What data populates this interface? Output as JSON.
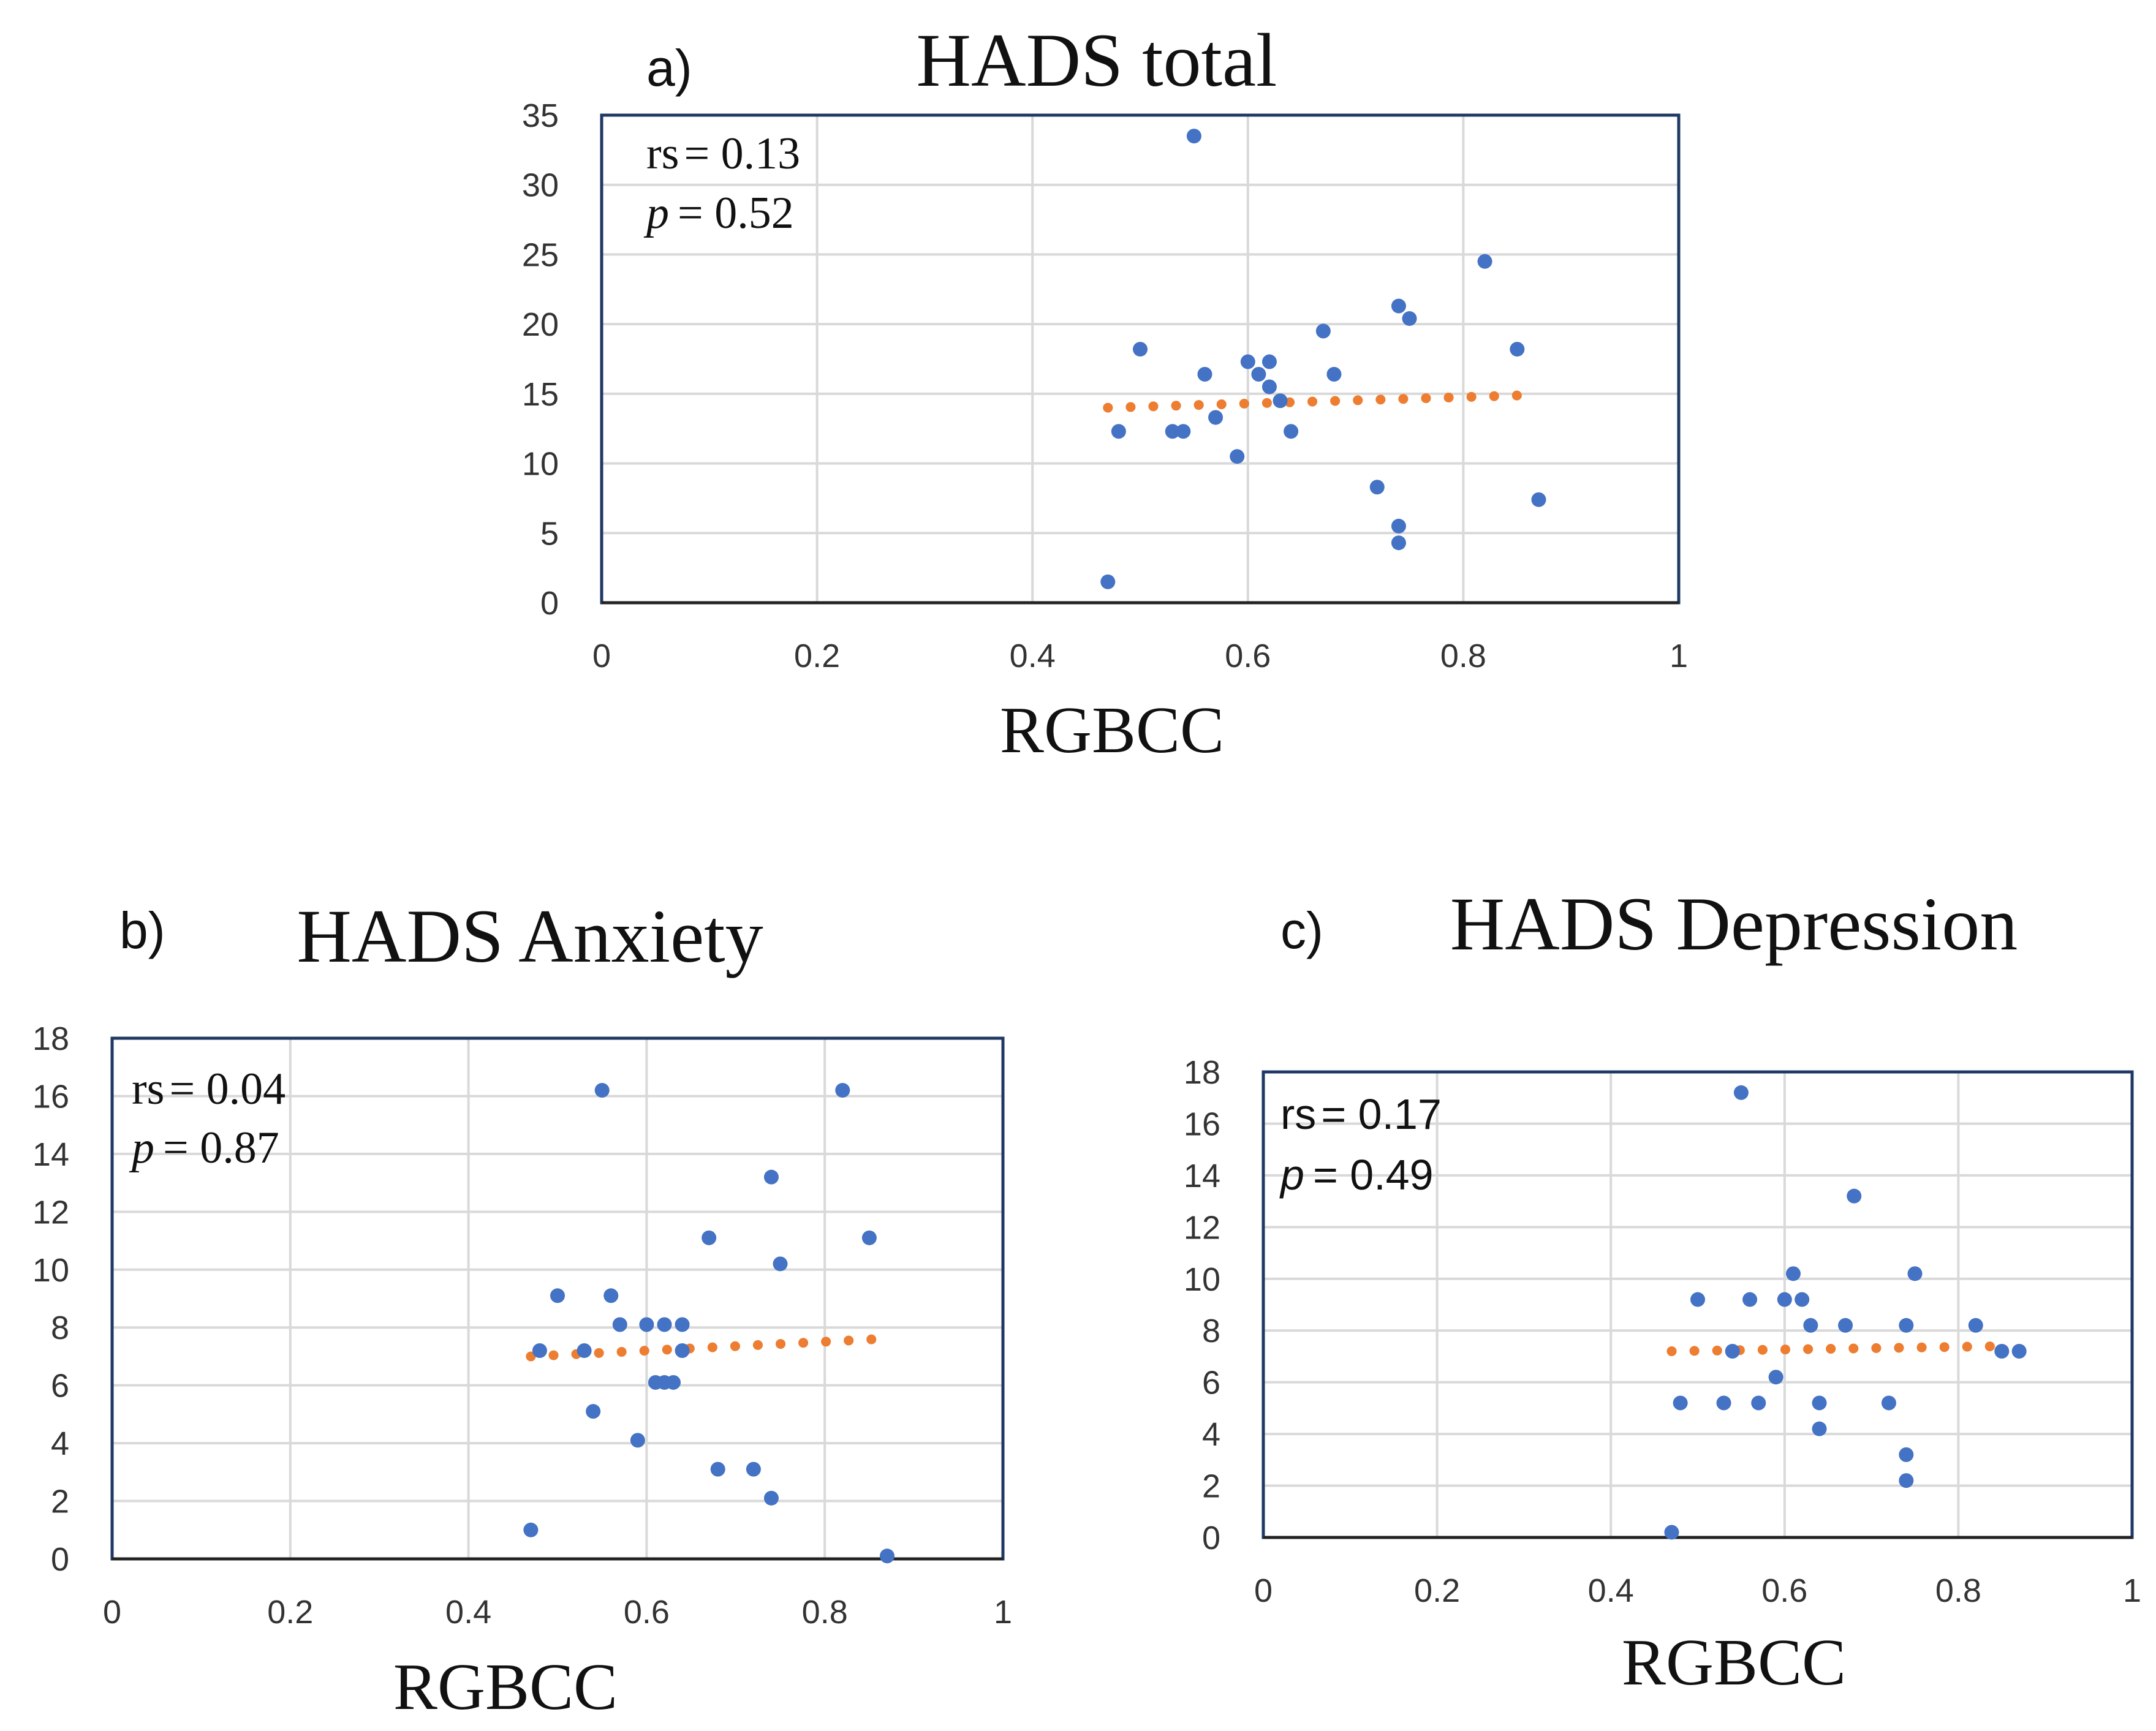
{
  "colors": {
    "points": "#4472C4",
    "trendline": "#ED7D31",
    "gridline": "#D9D9D9",
    "frame": "#1F3864"
  },
  "chart_data": [
    {
      "type": "scatter",
      "panel": "a)",
      "title": "HADS total",
      "xlabel": "RGBCC",
      "ylabel": "",
      "xlim": [
        0,
        1
      ],
      "ylim": [
        0,
        35
      ],
      "xticks": [
        "0",
        "0.2",
        "0.4",
        "0.6",
        "0.8",
        "1"
      ],
      "yticks": [
        "0",
        "5",
        "10",
        "15",
        "20",
        "25",
        "30",
        "35"
      ],
      "grid": true,
      "stats": {
        "rs_label": "rs",
        "rs_value": "= 0.13",
        "p_label": "p",
        "p_value": "= 0.52"
      },
      "points": [
        {
          "x": 0.47,
          "y": 1.5
        },
        {
          "x": 0.48,
          "y": 12.3
        },
        {
          "x": 0.5,
          "y": 18.2
        },
        {
          "x": 0.53,
          "y": 12.3
        },
        {
          "x": 0.54,
          "y": 12.3
        },
        {
          "x": 0.55,
          "y": 33.5
        },
        {
          "x": 0.56,
          "y": 16.4
        },
        {
          "x": 0.57,
          "y": 13.3
        },
        {
          "x": 0.59,
          "y": 10.5
        },
        {
          "x": 0.6,
          "y": 17.3
        },
        {
          "x": 0.61,
          "y": 16.4
        },
        {
          "x": 0.62,
          "y": 17.3
        },
        {
          "x": 0.62,
          "y": 15.5
        },
        {
          "x": 0.63,
          "y": 14.5
        },
        {
          "x": 0.64,
          "y": 12.3
        },
        {
          "x": 0.67,
          "y": 19.5
        },
        {
          "x": 0.68,
          "y": 16.4
        },
        {
          "x": 0.72,
          "y": 8.3
        },
        {
          "x": 0.74,
          "y": 21.3
        },
        {
          "x": 0.74,
          "y": 5.5
        },
        {
          "x": 0.74,
          "y": 4.3
        },
        {
          "x": 0.75,
          "y": 20.4
        },
        {
          "x": 0.82,
          "y": 24.5
        },
        {
          "x": 0.85,
          "y": 18.2
        },
        {
          "x": 0.87,
          "y": 7.4
        }
      ],
      "trendline": {
        "x": [
          0.47,
          0.86
        ],
        "y": [
          14.0,
          14.9
        ]
      }
    },
    {
      "type": "scatter",
      "panel": "b)",
      "title": "HADS Anxiety",
      "xlabel": "RGBCC",
      "ylabel": "",
      "xlim": [
        0,
        1
      ],
      "ylim": [
        0,
        18
      ],
      "xticks": [
        "0",
        "0.2",
        "0.4",
        "0.6",
        "0.8",
        "1"
      ],
      "yticks": [
        "0",
        "2",
        "4",
        "6",
        "8",
        "10",
        "12",
        "14",
        "16",
        "18"
      ],
      "grid": true,
      "stats": {
        "rs_label": "rs",
        "rs_value": "= 0.04",
        "p_label": "p",
        "p_value": "= 0.87"
      },
      "points": [
        {
          "x": 0.47,
          "y": 1.0
        },
        {
          "x": 0.48,
          "y": 7.2
        },
        {
          "x": 0.5,
          "y": 9.1
        },
        {
          "x": 0.53,
          "y": 7.2
        },
        {
          "x": 0.54,
          "y": 5.1
        },
        {
          "x": 0.55,
          "y": 16.2
        },
        {
          "x": 0.56,
          "y": 9.1
        },
        {
          "x": 0.57,
          "y": 8.1
        },
        {
          "x": 0.59,
          "y": 4.1
        },
        {
          "x": 0.6,
          "y": 8.1
        },
        {
          "x": 0.61,
          "y": 6.1
        },
        {
          "x": 0.62,
          "y": 6.1
        },
        {
          "x": 0.62,
          "y": 8.1
        },
        {
          "x": 0.63,
          "y": 6.1
        },
        {
          "x": 0.64,
          "y": 8.1
        },
        {
          "x": 0.64,
          "y": 7.2
        },
        {
          "x": 0.67,
          "y": 11.1
        },
        {
          "x": 0.68,
          "y": 3.1
        },
        {
          "x": 0.72,
          "y": 3.1
        },
        {
          "x": 0.74,
          "y": 13.2
        },
        {
          "x": 0.74,
          "y": 2.1
        },
        {
          "x": 0.75,
          "y": 10.2
        },
        {
          "x": 0.82,
          "y": 16.2
        },
        {
          "x": 0.85,
          "y": 11.1
        },
        {
          "x": 0.87,
          "y": 0.1
        }
      ],
      "trendline": {
        "x": [
          0.47,
          0.86
        ],
        "y": [
          7.0,
          7.6
        ]
      }
    },
    {
      "type": "scatter",
      "panel": "c)",
      "title": "HADS Depression",
      "xlabel": "RGBCC",
      "ylabel": "",
      "xlim": [
        0,
        1
      ],
      "ylim": [
        0,
        18
      ],
      "xticks": [
        "0",
        "0.2",
        "0.4",
        "0.6",
        "0.8",
        "1"
      ],
      "yticks": [
        "0",
        "2",
        "4",
        "6",
        "8",
        "10",
        "12",
        "14",
        "16",
        "18"
      ],
      "grid": true,
      "stats": {
        "rs_label": "rs",
        "rs_value": "= 0.17",
        "p_label": "p",
        "p_value": "= 0.49"
      },
      "points": [
        {
          "x": 0.47,
          "y": 0.2
        },
        {
          "x": 0.48,
          "y": 5.2
        },
        {
          "x": 0.5,
          "y": 9.2
        },
        {
          "x": 0.53,
          "y": 5.2
        },
        {
          "x": 0.54,
          "y": 7.2
        },
        {
          "x": 0.55,
          "y": 17.2
        },
        {
          "x": 0.56,
          "y": 9.2
        },
        {
          "x": 0.57,
          "y": 5.2
        },
        {
          "x": 0.59,
          "y": 6.2
        },
        {
          "x": 0.6,
          "y": 9.2
        },
        {
          "x": 0.61,
          "y": 10.2
        },
        {
          "x": 0.62,
          "y": 9.2
        },
        {
          "x": 0.63,
          "y": 8.2
        },
        {
          "x": 0.64,
          "y": 5.2
        },
        {
          "x": 0.64,
          "y": 4.2
        },
        {
          "x": 0.67,
          "y": 8.2
        },
        {
          "x": 0.68,
          "y": 13.2
        },
        {
          "x": 0.72,
          "y": 5.2
        },
        {
          "x": 0.74,
          "y": 8.2
        },
        {
          "x": 0.74,
          "y": 3.2
        },
        {
          "x": 0.74,
          "y": 2.2
        },
        {
          "x": 0.75,
          "y": 10.2
        },
        {
          "x": 0.82,
          "y": 8.2
        },
        {
          "x": 0.85,
          "y": 7.2
        },
        {
          "x": 0.87,
          "y": 7.2
        }
      ],
      "trendline": {
        "x": [
          0.47,
          0.86
        ],
        "y": [
          7.2,
          7.4
        ]
      }
    }
  ]
}
